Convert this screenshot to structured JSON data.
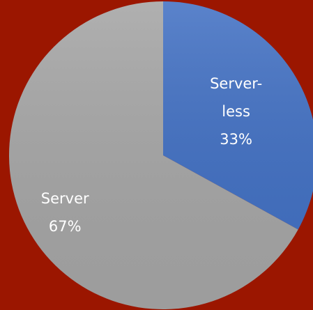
{
  "chart_data": {
    "type": "pie",
    "categories": [
      "Server-less",
      "Server"
    ],
    "values": [
      33,
      67
    ],
    "value_labels": [
      "33%",
      "67%"
    ],
    "colors": [
      "#4472c4",
      "#a5a5a5"
    ],
    "start_angle": 0,
    "direction": "clockwise"
  }
}
